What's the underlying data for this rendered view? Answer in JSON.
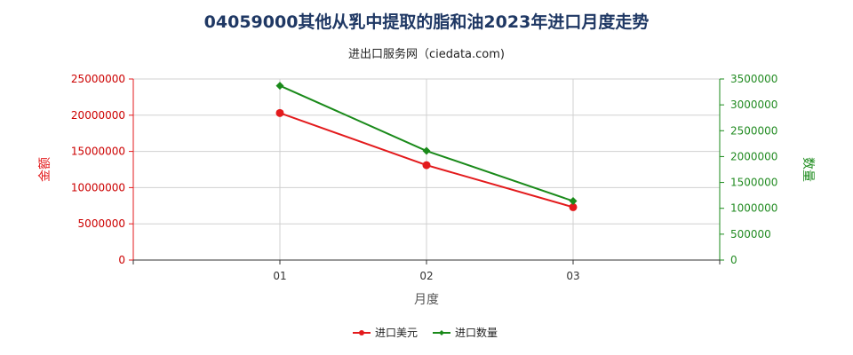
{
  "title": "04059000其他从乳中提取的脂和油2023年进口月度走势",
  "subtitle": "进出口服务网（ciedata.com)",
  "colors": {
    "amount": "#e31a1c",
    "quantity": "#1a8a1a",
    "title": "#1f3864",
    "grid": "#d0d0d0"
  },
  "chart_data": {
    "type": "line",
    "categories": [
      "01",
      "02",
      "03"
    ],
    "xlabel": "月度",
    "ylabel_left": "金额",
    "ylabel_right": "数量",
    "ylim_left": [
      0,
      25000000
    ],
    "ylim_right": [
      0,
      3500000
    ],
    "yticks_left": [
      "0",
      "5000000",
      "10000000",
      "15000000",
      "20000000",
      "25000000"
    ],
    "yticks_right": [
      "0",
      "500000",
      "1000000",
      "1500000",
      "2000000",
      "2500000",
      "3000000",
      "3500000"
    ],
    "grid": true,
    "legend_position": "bottom",
    "series": [
      {
        "name": "进口美元",
        "axis": "left",
        "values": [
          20300000,
          13100000,
          7300000
        ]
      },
      {
        "name": "进口数量",
        "axis": "right",
        "values": [
          3370000,
          2110000,
          1140000
        ]
      }
    ]
  }
}
